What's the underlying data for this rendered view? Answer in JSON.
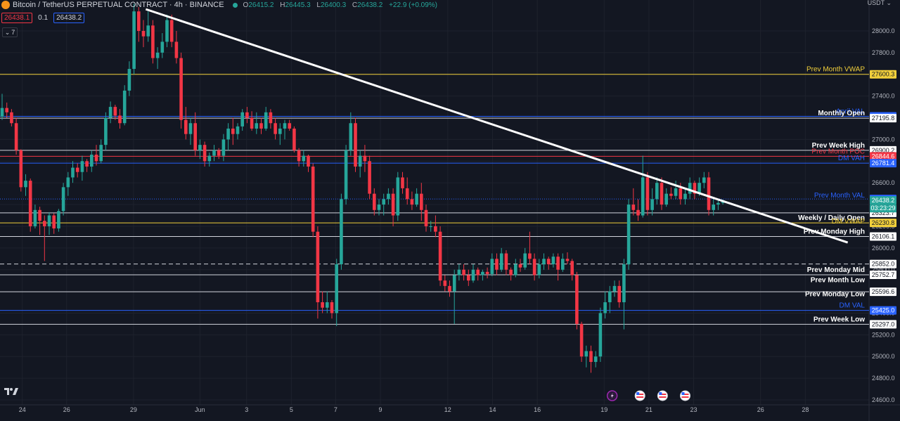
{
  "header": {
    "symbol_title": "Bitcoin / TetherUS PERPETUAL CONTRACT · 4h · BINANCE",
    "ohlc": [
      {
        "k": "O",
        "v": "26415.2"
      },
      {
        "k": "H",
        "v": "26445.3"
      },
      {
        "k": "L",
        "v": "26400.3"
      },
      {
        "k": "C",
        "v": "26438.2"
      }
    ],
    "change": "+22.9 (+0.09%)",
    "sell_price": "26438.1",
    "spread": "0.1",
    "buy_price": "26438.2",
    "indicators_count": "7",
    "currency": "USDT"
  },
  "colors": {
    "background": "#131722",
    "up": "#26a69a",
    "down": "#f23645",
    "grid": "#1e222d",
    "axis_text": "#b2b5be"
  },
  "chart_data": {
    "type": "candlestick",
    "y_axis": {
      "min": 24550,
      "max": 28200,
      "ticks": [
        24600,
        24800,
        25000,
        25200,
        25400,
        25600,
        25800,
        26000,
        26200,
        26400,
        26600,
        26800,
        27000,
        27200,
        27400,
        27600,
        27800,
        28000
      ]
    },
    "x_axis": {
      "ticks": [
        {
          "label": "24",
          "i": 4.3
        },
        {
          "label": "26",
          "i": 13.7
        },
        {
          "label": "29",
          "i": 27.9
        },
        {
          "label": "Jun",
          "i": 42.0
        },
        {
          "label": "3",
          "i": 51.9
        },
        {
          "label": "5",
          "i": 61.4
        },
        {
          "label": "7",
          "i": 70.8
        },
        {
          "label": "9",
          "i": 80.3
        },
        {
          "label": "12",
          "i": 94.6
        },
        {
          "label": "14",
          "i": 104.1
        },
        {
          "label": "16",
          "i": 113.6
        },
        {
          "label": "19",
          "i": 127.8
        },
        {
          "label": "21",
          "i": 137.3
        },
        {
          "label": "23",
          "i": 146.8
        },
        {
          "label": "26",
          "i": 161.0
        },
        {
          "label": "28",
          "i": 170.5
        }
      ]
    },
    "candles": [
      [
        27210,
        27420,
        27180,
        27290
      ],
      [
        27290,
        27340,
        27200,
        27250
      ],
      [
        27250,
        27280,
        27120,
        27150
      ],
      [
        27150,
        27200,
        26860,
        26900
      ],
      [
        26900,
        26910,
        26520,
        26560
      ],
      [
        26560,
        26680,
        26480,
        26620
      ],
      [
        26620,
        26640,
        26150,
        26200
      ],
      [
        26200,
        26400,
        26180,
        26350
      ],
      [
        26350,
        26380,
        26120,
        26250
      ],
      [
        26250,
        26300,
        25880,
        26200
      ],
      [
        26200,
        26330,
        26120,
        26300
      ],
      [
        26300,
        26320,
        26130,
        26180
      ],
      [
        26180,
        26360,
        26150,
        26340
      ],
      [
        26340,
        26600,
        26300,
        26560
      ],
      [
        26560,
        26700,
        26480,
        26650
      ],
      [
        26650,
        26800,
        26600,
        26740
      ],
      [
        26740,
        26780,
        26650,
        26700
      ],
      [
        26700,
        26850,
        26620,
        26800
      ],
      [
        26800,
        26820,
        26700,
        26750
      ],
      [
        26750,
        26900,
        26700,
        26860
      ],
      [
        26860,
        26950,
        26760,
        26800
      ],
      [
        26800,
        27000,
        26780,
        26950
      ],
      [
        26950,
        27250,
        26900,
        27200
      ],
      [
        27200,
        27350,
        27150,
        27300
      ],
      [
        27300,
        27320,
        27180,
        27220
      ],
      [
        27220,
        27280,
        27100,
        27150
      ],
      [
        27150,
        27500,
        27130,
        27450
      ],
      [
        27450,
        27720,
        27400,
        27650
      ],
      [
        27650,
        28250,
        27600,
        28180
      ],
      [
        28180,
        28220,
        27900,
        28000
      ],
      [
        28000,
        28100,
        27850,
        27950
      ],
      [
        27950,
        28180,
        27900,
        28050
      ],
      [
        28050,
        28100,
        27700,
        27750
      ],
      [
        27750,
        27850,
        27650,
        27800
      ],
      [
        27800,
        27980,
        27750,
        27900
      ],
      [
        27900,
        28150,
        27850,
        28100
      ],
      [
        28100,
        28150,
        27850,
        27900
      ],
      [
        27900,
        28000,
        27700,
        27750
      ],
      [
        27750,
        27800,
        27100,
        27180
      ],
      [
        27180,
        27300,
        27000,
        27050
      ],
      [
        27050,
        27200,
        26950,
        27150
      ],
      [
        27150,
        27250,
        26850,
        26900
      ],
      [
        26900,
        27000,
        26820,
        26950
      ],
      [
        26950,
        26980,
        26750,
        26800
      ],
      [
        26800,
        26880,
        26750,
        26850
      ],
      [
        26850,
        26950,
        26800,
        26900
      ],
      [
        26900,
        26920,
        26820,
        26850
      ],
      [
        26850,
        27050,
        26800,
        27000
      ],
      [
        27000,
        27150,
        26900,
        27100
      ],
      [
        27100,
        27200,
        26950,
        27050
      ],
      [
        27050,
        27150,
        27000,
        27120
      ],
      [
        27120,
        27280,
        27080,
        27250
      ],
      [
        27250,
        27300,
        27150,
        27200
      ],
      [
        27200,
        27260,
        27080,
        27100
      ],
      [
        27100,
        27250,
        27050,
        27150
      ],
      [
        27150,
        27200,
        27050,
        27100
      ],
      [
        27100,
        27300,
        27080,
        27250
      ],
      [
        27250,
        27280,
        27100,
        27150
      ],
      [
        27150,
        27200,
        27000,
        27050
      ],
      [
        27050,
        27150,
        26950,
        27100
      ],
      [
        27100,
        27180,
        27000,
        27150
      ],
      [
        27150,
        27180,
        27080,
        27100
      ],
      [
        27100,
        27120,
        26880,
        26900
      ],
      [
        26900,
        26920,
        26750,
        26800
      ],
      [
        26800,
        26900,
        26750,
        26850
      ],
      [
        26850,
        26860,
        26700,
        26750
      ],
      [
        26750,
        26780,
        26100,
        26150
      ],
      [
        26150,
        26200,
        25350,
        25500
      ],
      [
        25500,
        25600,
        25400,
        25450
      ],
      [
        25450,
        25600,
        25400,
        25500
      ],
      [
        25500,
        25520,
        25350,
        25400
      ],
      [
        25400,
        25900,
        25280,
        25850
      ],
      [
        25850,
        26500,
        25800,
        26450
      ],
      [
        26450,
        26950,
        26400,
        26900
      ],
      [
        26900,
        27250,
        26850,
        27150
      ],
      [
        27150,
        27200,
        26700,
        26750
      ],
      [
        26750,
        26900,
        26650,
        26850
      ],
      [
        26850,
        26950,
        26700,
        26800
      ],
      [
        26800,
        26850,
        26450,
        26500
      ],
      [
        26500,
        26550,
        26300,
        26350
      ],
      [
        26350,
        26450,
        26300,
        26400
      ],
      [
        26400,
        26500,
        26300,
        26450
      ],
      [
        26450,
        26550,
        26400,
        26500
      ],
      [
        26500,
        26550,
        26200,
        26300
      ],
      [
        26300,
        26700,
        26250,
        26650
      ],
      [
        26650,
        26700,
        26500,
        26550
      ],
      [
        26550,
        26650,
        26400,
        26450
      ],
      [
        26450,
        26520,
        26350,
        26400
      ],
      [
        26400,
        26550,
        26380,
        26500
      ],
      [
        26500,
        26600,
        26250,
        26350
      ],
      [
        26350,
        26400,
        26150,
        26200
      ],
      [
        26200,
        26250,
        26150,
        26200
      ],
      [
        26200,
        26300,
        26100,
        26150
      ],
      [
        26150,
        26200,
        25650,
        25700
      ],
      [
        25700,
        25750,
        25600,
        25650
      ],
      [
        25650,
        25700,
        25550,
        25600
      ],
      [
        25600,
        25800,
        25300,
        25750
      ],
      [
        25750,
        25850,
        25700,
        25800
      ],
      [
        25800,
        25850,
        25700,
        25750
      ],
      [
        25750,
        25800,
        25650,
        25700
      ],
      [
        25700,
        25850,
        25680,
        25800
      ],
      [
        25800,
        25820,
        25700,
        25750
      ],
      [
        25750,
        25800,
        25700,
        25780
      ],
      [
        25780,
        25820,
        25720,
        25760
      ],
      [
        25760,
        25950,
        25740,
        25900
      ],
      [
        25900,
        25950,
        25750,
        25800
      ],
      [
        25800,
        26000,
        25780,
        25950
      ],
      [
        25950,
        25980,
        25750,
        25800
      ],
      [
        25800,
        25820,
        25700,
        25750
      ],
      [
        25750,
        25900,
        25730,
        25850
      ],
      [
        25850,
        25900,
        25780,
        25820
      ],
      [
        25820,
        26000,
        25800,
        25950
      ],
      [
        25950,
        26150,
        25850,
        25900
      ],
      [
        25900,
        25950,
        25700,
        25750
      ],
      [
        25750,
        25900,
        25720,
        25850
      ],
      [
        25850,
        25950,
        25800,
        25900
      ],
      [
        25900,
        25920,
        25800,
        25850
      ],
      [
        25850,
        25950,
        25820,
        25920
      ],
      [
        25920,
        25950,
        25700,
        25800
      ],
      [
        25800,
        25950,
        25780,
        25900
      ],
      [
        25900,
        25960,
        25850,
        25880
      ],
      [
        25880,
        25900,
        25700,
        25750
      ],
      [
        25750,
        25780,
        25250,
        25300
      ],
      [
        25300,
        25320,
        24950,
        25000
      ],
      [
        25000,
        25100,
        24900,
        25050
      ],
      [
        25050,
        25100,
        24850,
        24950
      ],
      [
        24950,
        25050,
        24900,
        25000
      ],
      [
        25000,
        25450,
        24950,
        25400
      ],
      [
        25400,
        25600,
        25350,
        25500
      ],
      [
        25500,
        25650,
        25400,
        25600
      ],
      [
        25600,
        25700,
        25550,
        25650
      ],
      [
        25650,
        25700,
        25450,
        25500
      ],
      [
        25500,
        25900,
        25250,
        25850
      ],
      [
        25850,
        26450,
        25800,
        26400
      ],
      [
        26400,
        26550,
        26300,
        26350
      ],
      [
        26350,
        26450,
        26250,
        26300
      ],
      [
        26300,
        26850,
        26280,
        26650
      ],
      [
        26650,
        26700,
        26300,
        26350
      ],
      [
        26350,
        26550,
        26300,
        26450
      ],
      [
        26450,
        26650,
        26400,
        26600
      ],
      [
        26600,
        26650,
        26350,
        26400
      ],
      [
        26400,
        26550,
        26380,
        26500
      ],
      [
        26500,
        26560,
        26450,
        26480
      ],
      [
        26480,
        26620,
        26450,
        26550
      ],
      [
        26550,
        26600,
        26400,
        26450
      ],
      [
        26450,
        26550,
        26400,
        26500
      ],
      [
        26500,
        26650,
        26450,
        26600
      ],
      [
        26600,
        26620,
        26450,
        26500
      ],
      [
        26500,
        26650,
        26480,
        26600
      ],
      [
        26600,
        26700,
        26550,
        26650
      ],
      [
        26650,
        26700,
        26300,
        26350
      ],
      [
        26350,
        26450,
        26300,
        26400
      ],
      [
        26400,
        26450,
        26350,
        26415
      ],
      [
        26415,
        26446,
        26400,
        26438
      ]
    ],
    "trendline": {
      "from": {
        "i": 30.5,
        "y": 28200
      },
      "to": {
        "i": 179.5,
        "y": 26050
      }
    },
    "levels": [
      {
        "label": "Prev Month VWAP",
        "price": 27600.3,
        "color": "#f2d03b",
        "style": "solid",
        "tag_bg": "#f2d03b",
        "tag_fg": "#131722",
        "label_color": "#f2d03b",
        "tag": "27600.3"
      },
      {
        "label": "April VAL",
        "price": 27213.1,
        "color": "#2962ff",
        "style": "solid",
        "tag_bg": "#2962ff",
        "tag_fg": "#ffffff",
        "label_color": "#2962ff",
        "tag": "27213.1"
      },
      {
        "label": "Monthly Open",
        "price": 27195.8,
        "color": "#d1d4dc",
        "style": "solid",
        "tag_bg": "#ffffff",
        "tag_fg": "#131722",
        "label_color": "#ffffff",
        "tag": "27195.8"
      },
      {
        "label": "Prev Week High",
        "price": 26900.2,
        "color": "#d1d4dc",
        "style": "solid",
        "tag_bg": "#ffffff",
        "tag_fg": "#131722",
        "label_color": "#ffffff",
        "tag": "26900.2"
      },
      {
        "label": "Prev Month POC",
        "price": 26844.6,
        "color": "#f23645",
        "style": "solid",
        "tag_bg": "#f23645",
        "tag_fg": "#ffffff",
        "label_color": "#f23645",
        "tag": "26844.6"
      },
      {
        "label": "DM VAH",
        "price": 26781.4,
        "color": "#2962ff",
        "style": "solid",
        "tag_bg": "#2962ff",
        "tag_fg": "#ffffff",
        "label_color": "#2962ff",
        "tag": "26781.4"
      },
      {
        "label": "",
        "price": 26451.2,
        "color": "#2962ff",
        "style": "dotted",
        "tag_bg": "#2962ff",
        "tag_fg": "#ffffff",
        "label_color": "#2962ff",
        "tag": "26451.2"
      },
      {
        "label": "Prev Month VAL",
        "price": 26438.2,
        "color": "#2962ff",
        "style": "none",
        "tag_bg": "#26a69a",
        "tag_fg": "#ffffff",
        "label_color": "#2962ff",
        "tag": "26438.2"
      },
      {
        "label": "",
        "price": 26323.7,
        "color": "#d1d4dc",
        "style": "solid",
        "tag_bg": "#ffffff",
        "tag_fg": "#131722",
        "label_color": "#ffffff",
        "tag": "26323.7"
      },
      {
        "label": "Weekly / Daily Open",
        "price": 26230.8,
        "color": "#f2d03b",
        "style": "solid",
        "tag_bg": "#f2d03b",
        "tag_fg": "#131722",
        "label_color": "#ffffff",
        "tag": "26230.8"
      },
      {
        "label": "DM VWAP",
        "price": 26200,
        "color": "#f2d03b",
        "style": "none",
        "tag_bg": "",
        "tag_fg": "",
        "label_color": "#f2d03b",
        "tag": ""
      },
      {
        "label": "Prev Monday High",
        "price": 26106.1,
        "color": "#d1d4dc",
        "style": "solid",
        "tag_bg": "#ffffff",
        "tag_fg": "#131722",
        "label_color": "#ffffff",
        "tag": "26106.1"
      },
      {
        "label": "",
        "price": 25852.0,
        "color": "#d1d4dc",
        "style": "dashed",
        "tag_bg": "#ffffff",
        "tag_fg": "#131722",
        "label_color": "#ffffff",
        "tag": "25852.0"
      },
      {
        "label": "Prev Monday Mid",
        "price": 25752.7,
        "color": "#d1d4dc",
        "style": "solid",
        "tag_bg": "#ffffff",
        "tag_fg": "#131722",
        "label_color": "#ffffff",
        "tag": "25752.7"
      },
      {
        "label": "Prev Month Low",
        "price": 25660,
        "color": "#d1d4dc",
        "style": "none",
        "tag_bg": "",
        "tag_fg": "",
        "label_color": "#ffffff",
        "tag": ""
      },
      {
        "label": "",
        "price": 25596.6,
        "color": "#d1d4dc",
        "style": "solid",
        "tag_bg": "#ffffff",
        "tag_fg": "#131722",
        "label_color": "#ffffff",
        "tag": "25596.6"
      },
      {
        "label": "Prev Monday Low",
        "price": 25530,
        "color": "#d1d4dc",
        "style": "none",
        "tag_bg": "",
        "tag_fg": "",
        "label_color": "#ffffff",
        "tag": ""
      },
      {
        "label": "DM VAL",
        "price": 25425.0,
        "color": "#2962ff",
        "style": "solid",
        "tag_bg": "#2962ff",
        "tag_fg": "#ffffff",
        "label_color": "#2962ff",
        "tag": "25425.0"
      },
      {
        "label": "Prev Week Low",
        "price": 25297.0,
        "color": "#d1d4dc",
        "style": "solid",
        "tag_bg": "#ffffff",
        "tag_fg": "#131722",
        "label_color": "#ffffff",
        "tag": "25297.0"
      }
    ],
    "countdown": "03:23:29",
    "last_price": "26438.2"
  },
  "events": [
    {
      "name": "lightning-event-icon",
      "i": 129.5
    },
    {
      "name": "us-flag-event-icon",
      "i": 135.4
    },
    {
      "name": "us-flag-event-icon",
      "i": 140.2
    },
    {
      "name": "us-flag-event-icon",
      "i": 145.0
    }
  ]
}
